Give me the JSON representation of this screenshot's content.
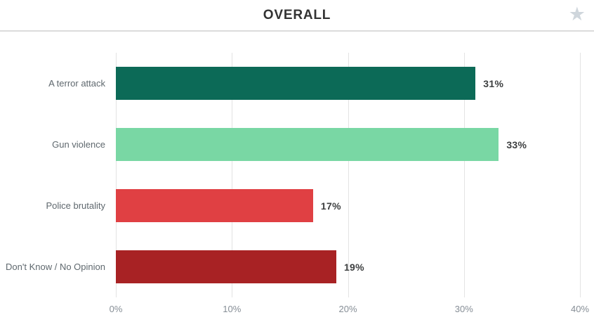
{
  "header": {
    "title": "OVERALL",
    "star_icon": "★"
  },
  "chart_data": {
    "type": "bar",
    "orientation": "horizontal",
    "title": "OVERALL",
    "categories": [
      "A terror attack",
      "Gun violence",
      "Police brutality",
      "Don't Know / No Opinion"
    ],
    "values": [
      31,
      33,
      17,
      19
    ],
    "value_labels": [
      "31%",
      "33%",
      "17%",
      "19%"
    ],
    "bar_colors": [
      "#0c6a57",
      "#79d7a4",
      "#e04043",
      "#a82224"
    ],
    "xlim": [
      0,
      40
    ],
    "x_ticks": [
      {
        "value": 0,
        "label": "0%"
      },
      {
        "value": 10,
        "label": "10%"
      },
      {
        "value": 20,
        "label": "20%"
      },
      {
        "value": 30,
        "label": "30%"
      },
      {
        "value": 40,
        "label": "40%"
      }
    ],
    "grid": "vertical",
    "legend": "none"
  },
  "colors": {
    "grid": "#e3e3e3",
    "divider": "#dcdcdc",
    "category_label": "#5f686e",
    "tick_label": "#868e96",
    "value_label": "#3d3f40",
    "star": "#cfd6dc"
  }
}
